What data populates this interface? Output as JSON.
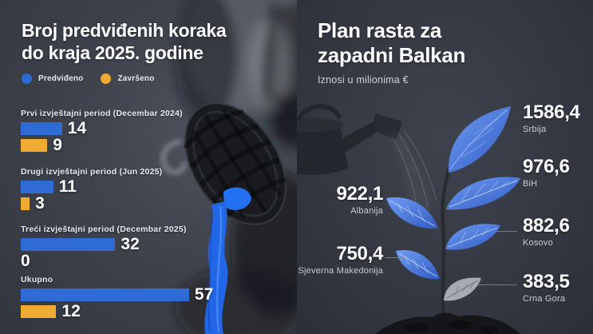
{
  "chart_data": [
    {
      "type": "bar",
      "orientation": "horizontal",
      "title": "Broj predviđenih koraka do kraja 2025. godine",
      "title_lines": [
        "Broj predviđenih koraka",
        "do kraja 2025. godine"
      ],
      "legend": [
        {
          "label": "Predviđeno",
          "color": "#2e6bd4"
        },
        {
          "label": "Završeno",
          "color": "#eead32"
        }
      ],
      "legend_position": "top-left",
      "grid": false,
      "categories": [
        "Prvi izvještajni period (Decembar 2024)",
        "Drugi izvještajni period (Jun 2025)",
        "Treći izvještajni period (Decembar 2025)",
        "Ukupno"
      ],
      "series": [
        {
          "name": "Predviđeno",
          "color": "#2e6bd4",
          "values": [
            14,
            11,
            32,
            57
          ]
        },
        {
          "name": "Završeno",
          "color": "#eead32",
          "values": [
            9,
            3,
            0,
            12
          ]
        }
      ],
      "xlim": [
        0,
        60
      ]
    },
    {
      "type": "bar",
      "style": "pictorial-plant-leaves",
      "title": "Plan rasta za zapadni Balkan",
      "title_lines": [
        "Plan rasta za",
        "zapadni Balkan"
      ],
      "subtitle": "Iznosi u milionima €",
      "unit": "milioni €",
      "leaf_color_highlight": "#4a7ee8",
      "leaf_color_muted": "#b4b8bf",
      "points": [
        {
          "country": "Srbija",
          "value": 1586.4,
          "label": "1586,4"
        },
        {
          "country": "BiH",
          "value": 976.6,
          "label": "976,6"
        },
        {
          "country": "Albanija",
          "value": 922.1,
          "label": "922,1"
        },
        {
          "country": "Kosovo",
          "value": 882.6,
          "label": "882,6"
        },
        {
          "country": "Sjeverna Makedonija",
          "value": 750.4,
          "label": "750,4"
        },
        {
          "country": "Crna Gora",
          "value": 383.5,
          "label": "383,5"
        }
      ]
    }
  ],
  "colors": {
    "background_left": "#3a3e48",
    "background_right": "#30343e",
    "accent_blue": "#2e6bd4",
    "accent_yellow": "#eead32",
    "gum_blue": "#1b63e8",
    "text_primary": "#ffffff",
    "text_secondary": "#c6cbd3"
  }
}
